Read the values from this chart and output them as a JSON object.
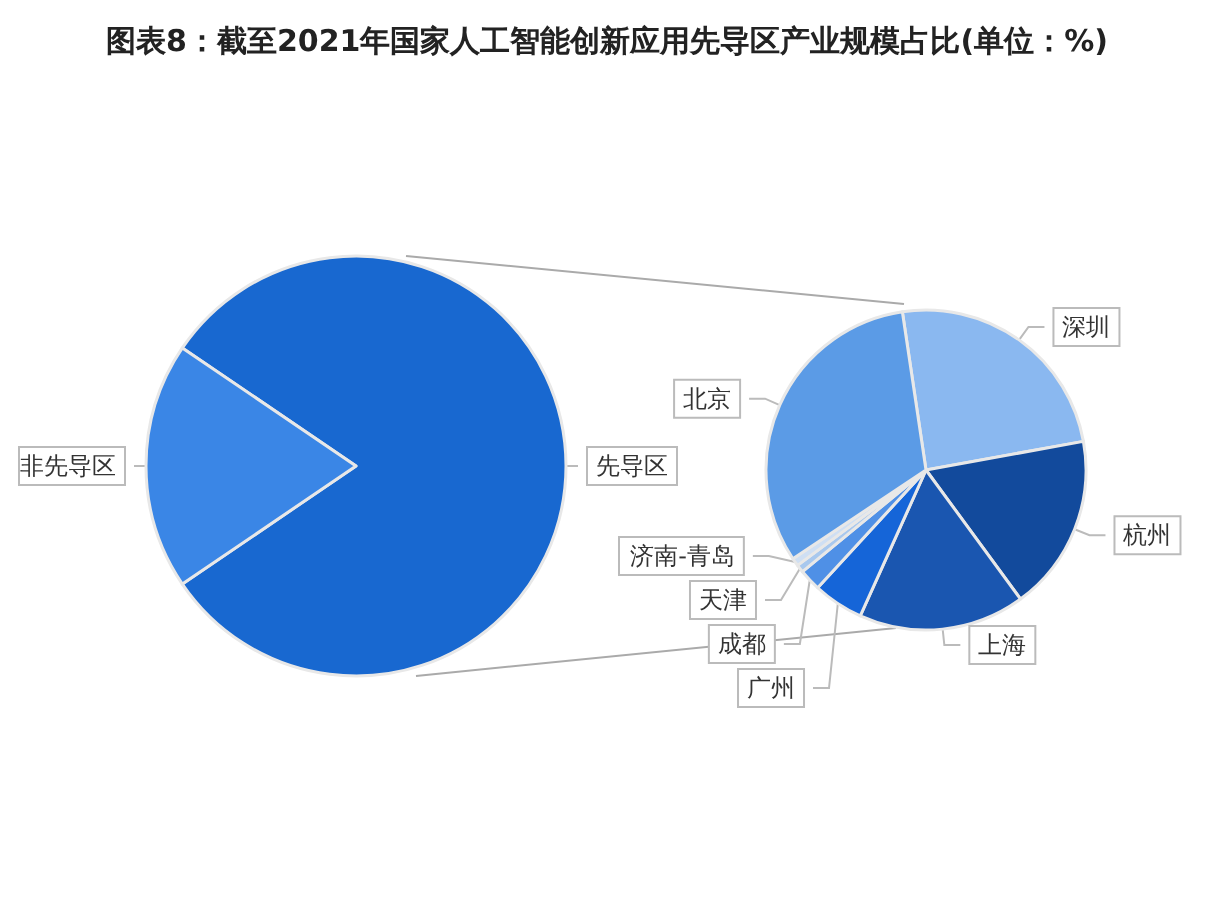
{
  "chart_data": [
    {
      "type": "pie",
      "title": "图表8：截至2021年国家人工智能创新应用先导区产业规模占比(单位：%)",
      "categories": [
        "先导区",
        "非先导区"
      ],
      "values": [
        81,
        19
      ],
      "colors": [
        "#1868d0",
        "#3a86e6"
      ]
    },
    {
      "type": "pie",
      "categories": [
        "深圳",
        "杭州",
        "上海",
        "广州",
        "成都",
        "天津",
        "济南-青岛",
        "北京"
      ],
      "values": [
        24.5,
        17.8,
        16.8,
        5.1,
        2.2,
        0.8,
        0.8,
        32.0
      ],
      "colors": [
        "#8ab8f0",
        "#124a9c",
        "#1a56b0",
        "#1565d8",
        "#4f90e6",
        "#a8c8ee",
        "#cfdff3",
        "#5b9be6"
      ]
    }
  ]
}
